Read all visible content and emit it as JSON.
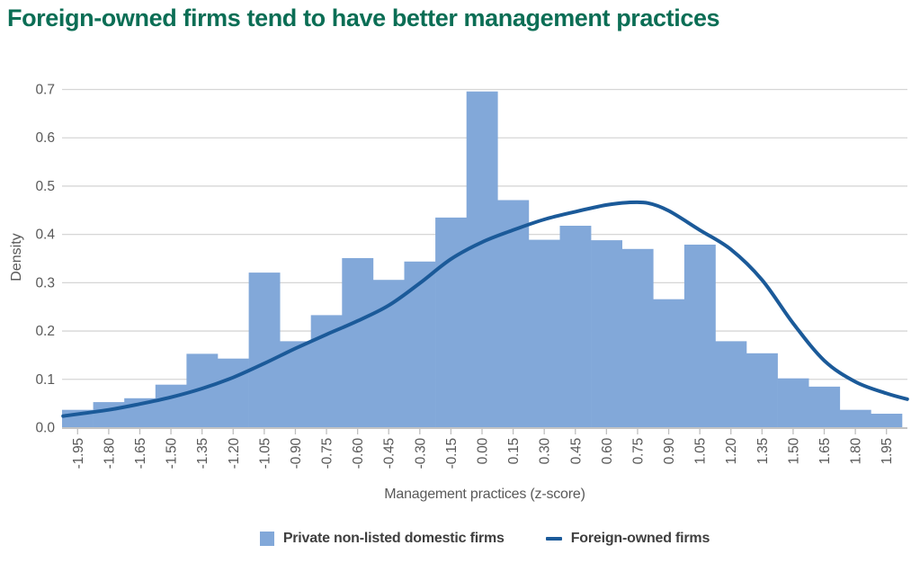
{
  "title": "Foreign-owned firms tend to have better management practices",
  "colors": {
    "title": "#0B6E55",
    "bar": "#82A8D9",
    "line": "#1B5A99",
    "grid": "#D6D6D6",
    "axis": "#C4C4C4",
    "tick": "#BFBFBF",
    "tick_label": "#595959",
    "legend_text": "#3F3F3F",
    "background": "#FFFFFF"
  },
  "chart_data": {
    "type": "bar",
    "subtype": "histogram-with-density-line",
    "title": "Foreign-owned firms tend to have better management practices",
    "xlabel": "Management practices (z-score)",
    "ylabel": "Density",
    "ylim": [
      0,
      0.7
    ],
    "yticks": [
      "0.0",
      "0.1",
      "0.2",
      "0.3",
      "0.4",
      "0.5",
      "0.6",
      "0.7"
    ],
    "grid": true,
    "legend_position": "bottom",
    "categories": [
      "-1.95",
      "-1.80",
      "-1.65",
      "-1.50",
      "-1.35",
      "-1.20",
      "-1.05",
      "-0.90",
      "-0.75",
      "-0.60",
      "-0.45",
      "-0.30",
      "-0.15",
      "0.00",
      "0.15",
      "0.30",
      "0.45",
      "0.60",
      "0.75",
      "0.90",
      "1.05",
      "1.20",
      "1.35",
      "1.50",
      "1.65",
      "1.80",
      "1.95"
    ],
    "bin_width": 0.15,
    "series": [
      {
        "name": "Private non-listed domestic firms",
        "type": "bar",
        "values": [
          0.036,
          0.052,
          0.06,
          0.088,
          0.152,
          0.142,
          0.32,
          0.178,
          0.232,
          0.35,
          0.305,
          0.343,
          0.434,
          0.695,
          0.47,
          0.388,
          0.417,
          0.387,
          0.369,
          0.265,
          0.378,
          0.178,
          0.153,
          0.101,
          0.084,
          0.036,
          0.028
        ]
      },
      {
        "name": "Foreign-owned firms",
        "type": "line",
        "points": [
          [
            -2.02,
            0.023
          ],
          [
            -1.8,
            0.036
          ],
          [
            -1.65,
            0.048
          ],
          [
            -1.5,
            0.062
          ],
          [
            -1.35,
            0.08
          ],
          [
            -1.2,
            0.103
          ],
          [
            -1.05,
            0.132
          ],
          [
            -0.9,
            0.163
          ],
          [
            -0.75,
            0.192
          ],
          [
            -0.6,
            0.22
          ],
          [
            -0.45,
            0.252
          ],
          [
            -0.3,
            0.298
          ],
          [
            -0.15,
            0.348
          ],
          [
            0.0,
            0.383
          ],
          [
            0.15,
            0.408
          ],
          [
            0.3,
            0.43
          ],
          [
            0.45,
            0.446
          ],
          [
            0.6,
            0.46
          ],
          [
            0.7,
            0.465
          ],
          [
            0.8,
            0.464
          ],
          [
            0.9,
            0.448
          ],
          [
            1.05,
            0.408
          ],
          [
            1.2,
            0.368
          ],
          [
            1.35,
            0.305
          ],
          [
            1.5,
            0.215
          ],
          [
            1.65,
            0.138
          ],
          [
            1.8,
            0.094
          ],
          [
            1.95,
            0.07
          ],
          [
            2.05,
            0.058
          ]
        ]
      }
    ]
  }
}
